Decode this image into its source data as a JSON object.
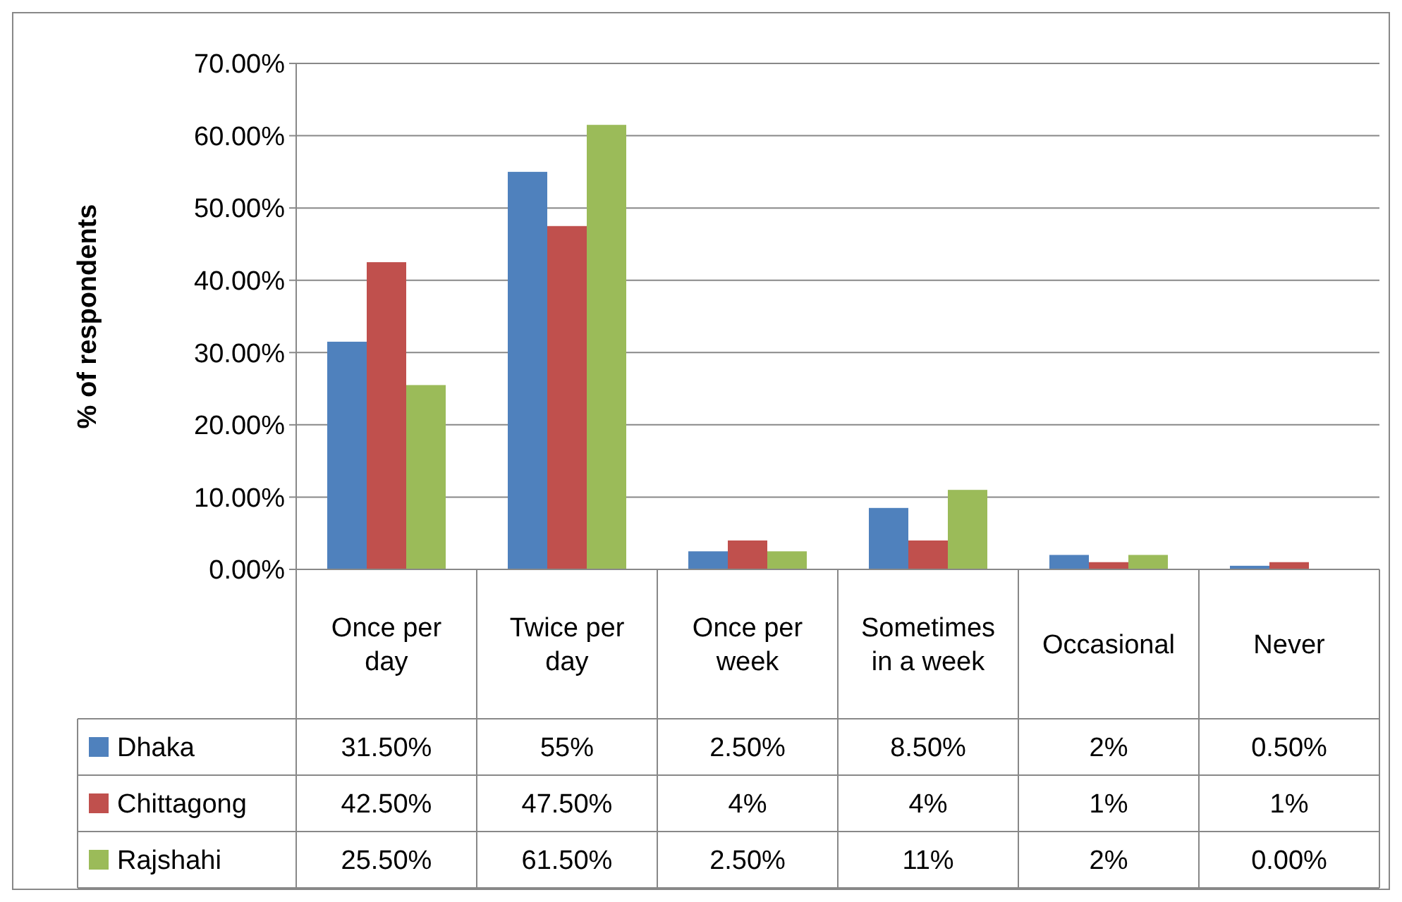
{
  "chart_data": {
    "type": "bar",
    "ylabel": "% of respondents",
    "categories": [
      "Once per day",
      "Twice per day",
      "Once per week",
      "Sometimes in a week",
      "Occasional",
      "Never"
    ],
    "series": [
      {
        "name": "Dhaka",
        "color": "#4f81bd",
        "values": [
          31.5,
          55,
          2.5,
          8.5,
          2,
          0.5
        ],
        "value_labels": [
          "31.50%",
          "55%",
          "2.50%",
          "8.50%",
          "2%",
          "0.50%"
        ]
      },
      {
        "name": "Chittagong",
        "color": "#c0504d",
        "values": [
          42.5,
          47.5,
          4,
          4,
          1,
          1
        ],
        "value_labels": [
          "42.50%",
          "47.50%",
          "4%",
          "4%",
          "1%",
          "1%"
        ]
      },
      {
        "name": "Rajshahi",
        "color": "#9bbb59",
        "values": [
          25.5,
          61.5,
          2.5,
          11,
          2,
          0
        ],
        "value_labels": [
          "25.50%",
          "61.50%",
          "2.50%",
          "11%",
          "2%",
          "0.00%"
        ]
      }
    ],
    "ylim": [
      0,
      70
    ],
    "yticks": [
      {
        "value": 0,
        "label": "0.00%"
      },
      {
        "value": 10,
        "label": "10.00%"
      },
      {
        "value": 20,
        "label": "20.00%"
      },
      {
        "value": 30,
        "label": "30.00%"
      },
      {
        "value": 40,
        "label": "40.00%"
      },
      {
        "value": 50,
        "label": "50.00%"
      },
      {
        "value": 60,
        "label": "60.00%"
      },
      {
        "value": 70,
        "label": "70.00%"
      }
    ],
    "grid": "y",
    "legend": "bottom"
  }
}
